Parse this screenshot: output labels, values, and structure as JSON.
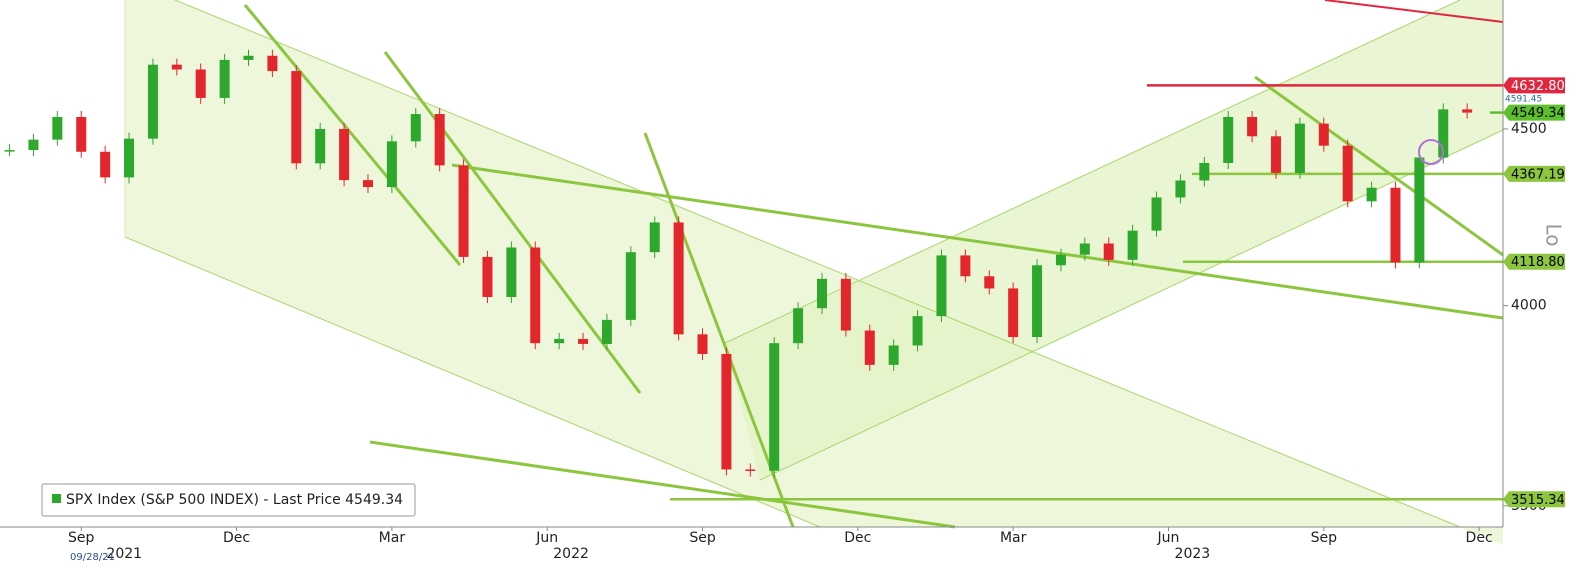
{
  "chart_data": {
    "type": "candlestick",
    "series": [
      {
        "name": "SPX Index (S&P 500 INDEX) - Last Price 4549.34",
        "up_color": "#2da82d",
        "down_color": "#e3262b",
        "values": [
          4437,
          4468,
          4536,
          4432,
          4357,
          4471,
          4697,
          4682,
          4594,
          4712,
          4725,
          4677,
          4398,
          4500,
          4349,
          4329,
          4463,
          4545,
          4392,
          4132,
          4023,
          4158,
          3901,
          3912,
          3899,
          3962,
          4145,
          4228,
          3924,
          3873,
          3586,
          3583,
          3901,
          3993,
          4072,
          3934,
          3845,
          3895,
          3972,
          4136,
          4079,
          4046,
          3917,
          4109,
          4138,
          4169,
          4124,
          4205,
          4299,
          4348,
          4399,
          4536,
          4478,
          4370,
          4516,
          4450,
          4288,
          4327,
          4117,
          4415,
          4559,
          4549.34
        ]
      }
    ],
    "log_scale": true,
    "ylim": [
      3451,
      4904
    ],
    "yticks": [
      3500,
      4000,
      4500
    ],
    "axis_label": "Lo",
    "xlim": [
      -0.4,
      62.5
    ],
    "xticks": [
      {
        "value": 3,
        "label": "Sep"
      },
      {
        "value": 9.5,
        "label": "Dec"
      },
      {
        "value": 16,
        "label": "Mar"
      },
      {
        "value": 22.5,
        "label": "Jun"
      },
      {
        "value": 29,
        "label": "Sep"
      },
      {
        "value": 35.5,
        "label": "Dec"
      },
      {
        "value": 42,
        "label": "Mar"
      },
      {
        "value": 48.5,
        "label": "Jun"
      },
      {
        "value": 55,
        "label": "Sep"
      },
      {
        "value": 61.5,
        "label": "Dec"
      }
    ],
    "year_ticks": [
      {
        "value": 4.8,
        "label": "2021"
      },
      {
        "value": 23.5,
        "label": "2022"
      },
      {
        "value": 49.5,
        "label": "2023"
      }
    ],
    "start_date": "09/28/21",
    "hlines": [
      {
        "value": 4632.8,
        "label": "4632.80",
        "color": "#e3263f"
      },
      {
        "value": 4549.34,
        "label": "4549.34",
        "color": "#5cc02c"
      },
      {
        "value": 4367.19,
        "label": "4367.19",
        "color": "#8cc63f"
      },
      {
        "value": 4118.8,
        "label": "4118.80",
        "color": "#8cc63f"
      },
      {
        "value": 3515.34,
        "label": "3515.34",
        "color": "#8cc63f"
      }
    ],
    "annotations": [
      {
        "value": 4591.45,
        "label": "4591.45"
      }
    ]
  }
}
